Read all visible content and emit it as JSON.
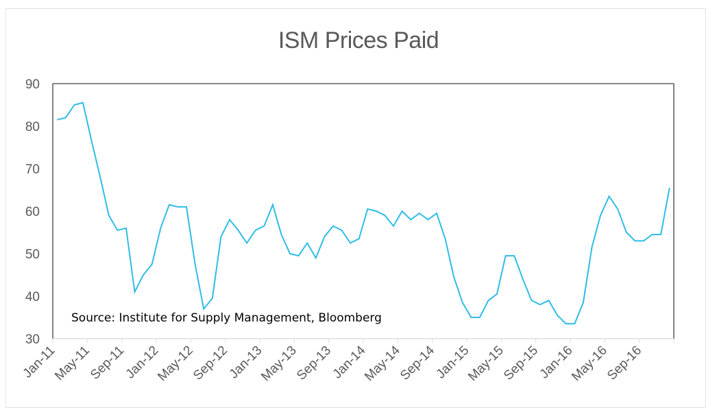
{
  "chart_data": {
    "type": "line",
    "title": "ISM Prices Paid",
    "xlabel": "",
    "ylabel": "",
    "ylim": [
      30,
      90
    ],
    "yticks": [
      30,
      40,
      50,
      60,
      70,
      80,
      90
    ],
    "grid": false,
    "legend": null,
    "annotation": "Source: Institute for Supply Management, Bloomberg",
    "x_tick_labels": [
      "Jan-11",
      "May-11",
      "Sep-11",
      "Jan-12",
      "May-12",
      "Sep-12",
      "Jan-13",
      "May-13",
      "Sep-13",
      "Jan-14",
      "May-14",
      "Sep-14",
      "Jan-15",
      "May-15",
      "Sep-15",
      "Jan-16",
      "May-16",
      "Sep-16"
    ],
    "x_start": "Jan-11",
    "x_end": "Dec-16",
    "series": [
      {
        "name": "ISM Prices Paid",
        "color": "#2ebce6",
        "values": [
          81.5,
          82.0,
          85.0,
          85.5,
          76.5,
          68.0,
          59.0,
          55.5,
          56.0,
          41.0,
          45.0,
          47.5,
          56.0,
          61.5,
          61.0,
          61.0,
          47.5,
          37.0,
          39.5,
          54.0,
          58.0,
          55.5,
          52.5,
          55.5,
          56.5,
          61.5,
          54.5,
          50.0,
          49.5,
          52.5,
          49.0,
          54.0,
          56.5,
          55.5,
          52.5,
          53.5,
          60.5,
          60.0,
          59.0,
          56.5,
          60.0,
          58.0,
          59.5,
          58.0,
          59.5,
          53.5,
          44.5,
          38.5,
          35.0,
          35.0,
          39.0,
          40.5,
          49.5,
          49.5,
          44.0,
          39.0,
          38.0,
          39.0,
          35.5,
          33.5,
          33.5,
          38.5,
          51.5,
          59.0,
          63.5,
          60.5,
          55.0,
          53.0,
          53.0,
          54.5,
          54.5,
          65.5
        ]
      }
    ]
  }
}
